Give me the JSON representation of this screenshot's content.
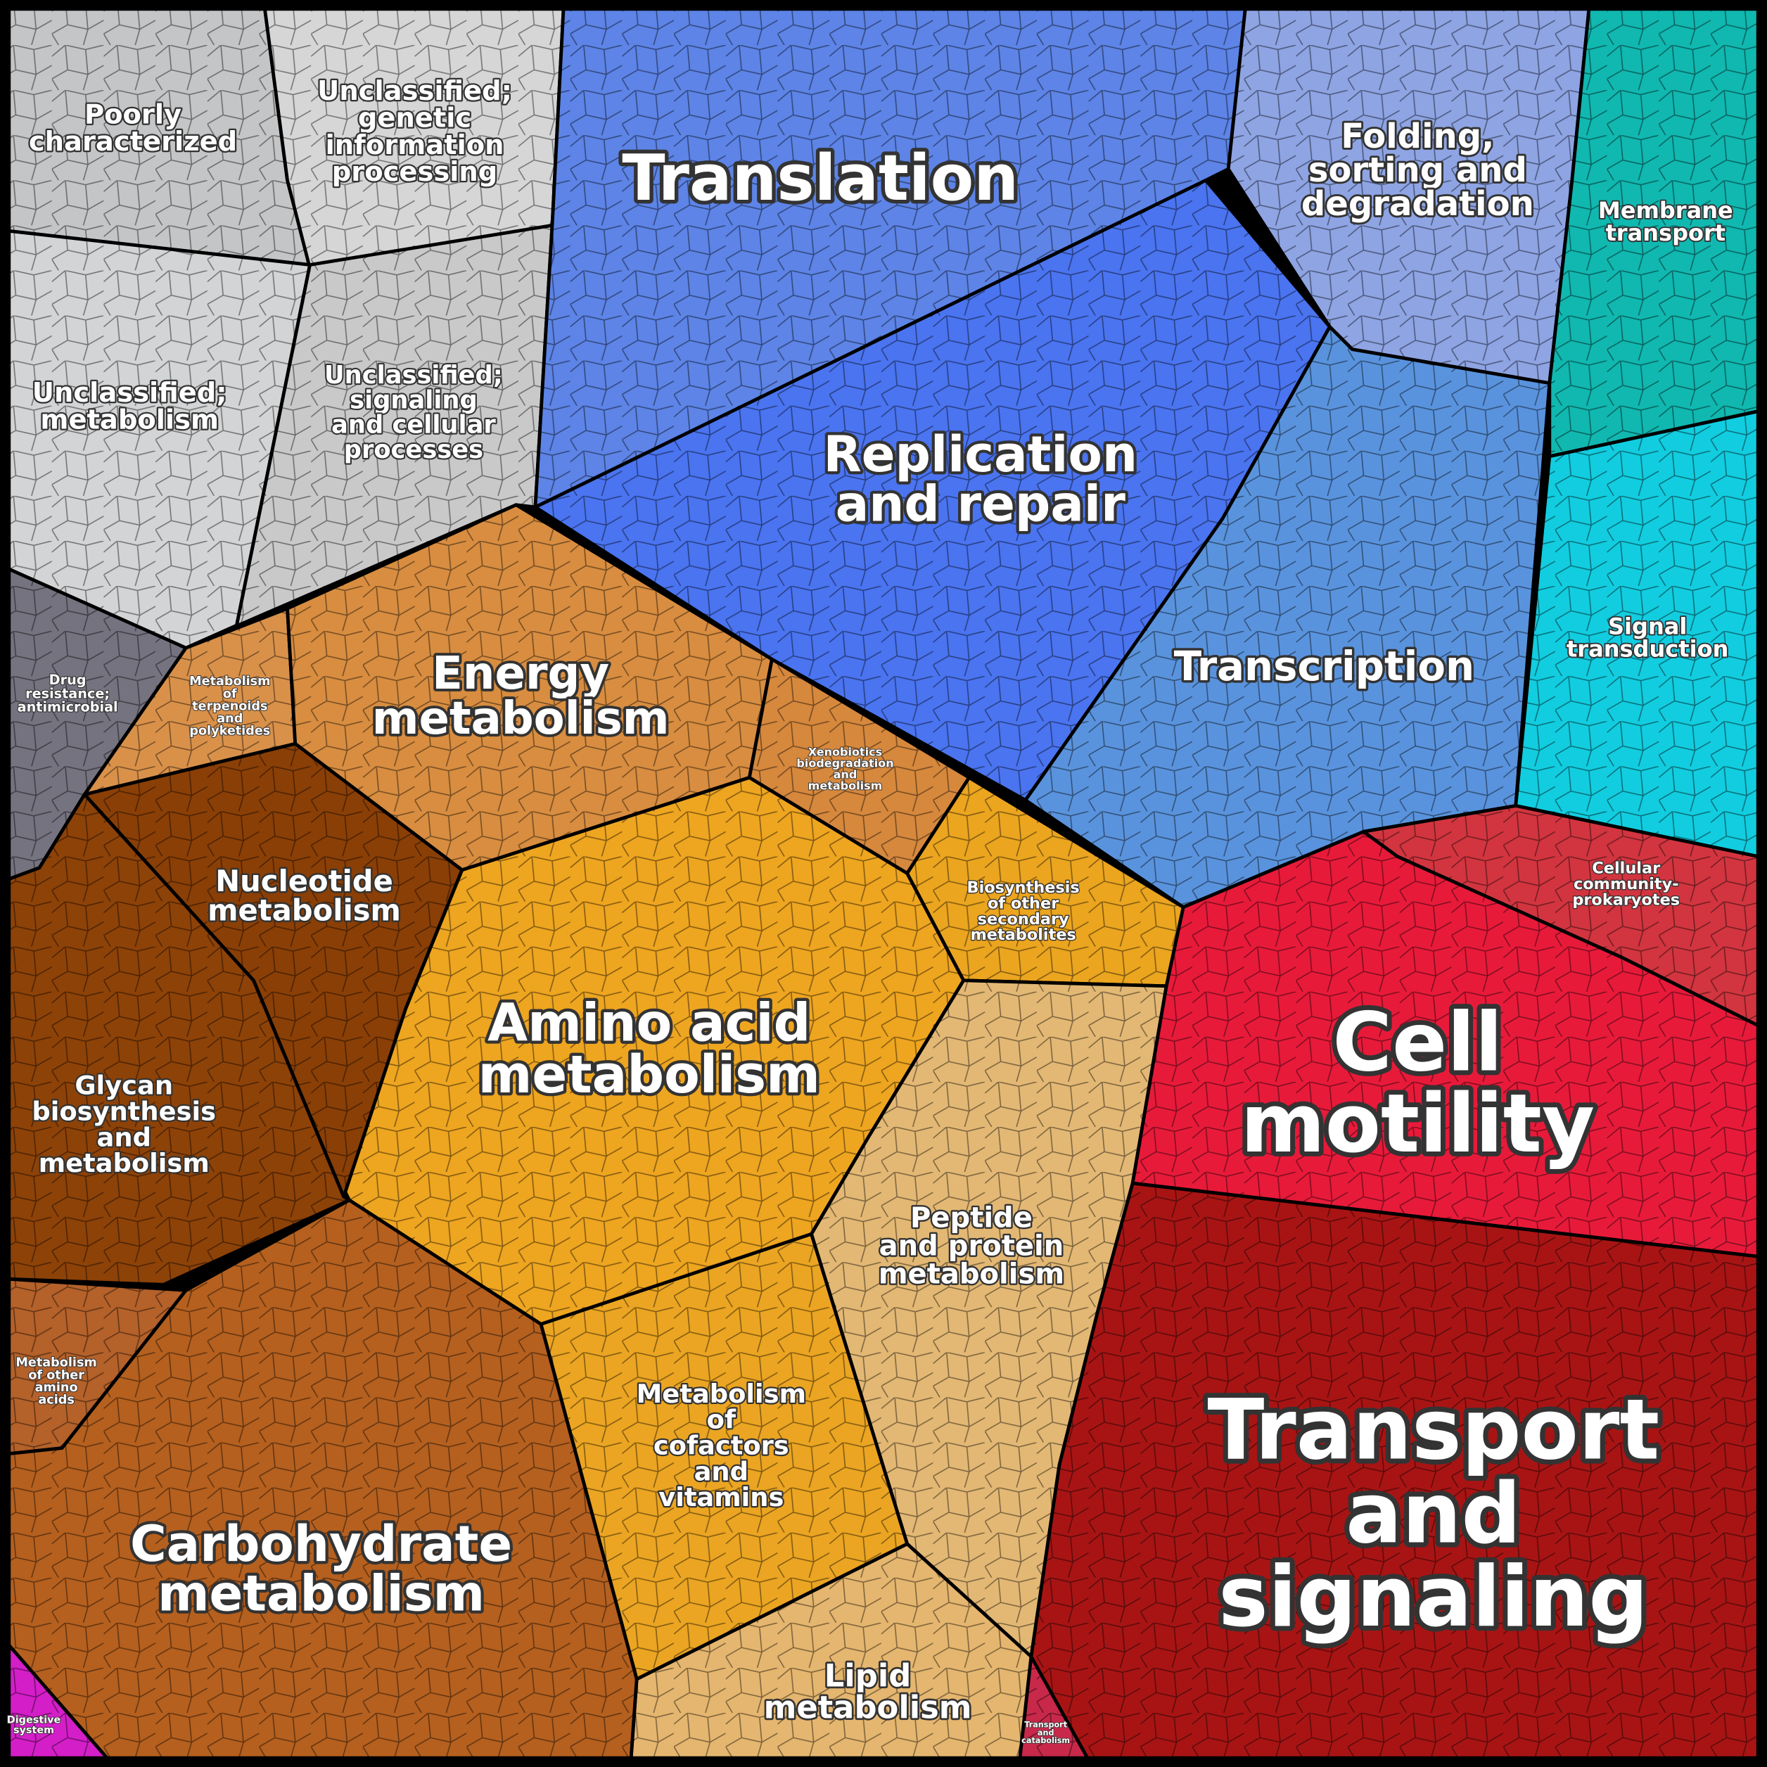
{
  "regions": [
    {
      "label": [
        "Poorly",
        "characterized"
      ],
      "color": "#c4c5c6"
    },
    {
      "label": [
        "Unclassified;",
        "genetic",
        "information",
        "processing"
      ],
      "color": "#d6d6d6"
    },
    {
      "label": [
        "Unclassified;",
        "metabolism"
      ],
      "color": "#d3d4d5"
    },
    {
      "label": [
        "Unclassified;",
        "signaling",
        "and cellular",
        "processes"
      ],
      "color": "#c9c9c9"
    },
    {
      "label": [
        "Drug",
        "resistance;",
        "antimicrobial"
      ],
      "color": "#75737f"
    },
    {
      "label": [
        "Metabolism",
        "of",
        "terpenoids",
        "and",
        "polyketides"
      ],
      "color": "#d9914a"
    },
    {
      "label": [
        "Energy",
        "metabolism"
      ],
      "color": "#d88d40"
    },
    {
      "label": [
        "Xenobiotics",
        "biodegradation",
        "and",
        "metabolism"
      ],
      "color": "#d6883d"
    },
    {
      "label": [
        "Translation"
      ],
      "color": "#5d84e6"
    },
    {
      "label": [
        "Replication",
        "and repair"
      ],
      "color": "#4a74f0"
    },
    {
      "label": [
        "Folding,",
        "sorting and",
        "degradation"
      ],
      "color": "#8ea4e3"
    },
    {
      "label": [
        "Transcription"
      ],
      "color": "#5a93dd"
    },
    {
      "label": [
        "Membrane",
        "transport"
      ],
      "color": "#10b8b0"
    },
    {
      "label": [
        "Signal",
        "transduction"
      ],
      "color": "#12cde0"
    },
    {
      "label": [
        "Cellular",
        "community-",
        "prokaryotes"
      ],
      "color": "#d2353f"
    },
    {
      "label": [
        "Cell",
        "motility"
      ],
      "color": "#e81a3a"
    },
    {
      "label": [
        "Transport",
        "and",
        "signaling"
      ],
      "color": "#a81414"
    },
    {
      "label": [
        "Transport",
        "and",
        "catabolism"
      ],
      "color": "#c8284a"
    },
    {
      "label": [
        "Biosynthesis",
        "of other",
        "secondary",
        "metabolites"
      ],
      "color": "#eba51f"
    },
    {
      "label": [
        "Peptide",
        "and protein",
        "metabolism"
      ],
      "color": "#e3b874"
    },
    {
      "label": [
        "Lipid",
        "metabolism"
      ],
      "color": "#e5b66f"
    },
    {
      "label": [
        "Metabolism",
        "of",
        "cofactors",
        "and",
        "vitamins"
      ],
      "color": "#eba522"
    },
    {
      "label": [
        "Amino acid",
        "metabolism"
      ],
      "color": "#eea520"
    },
    {
      "label": [
        "Nucleotide",
        "metabolism"
      ],
      "color": "#8a3f06"
    },
    {
      "label": [
        "Glycan",
        "biosynthesis",
        "and",
        "metabolism"
      ],
      "color": "#8d4208"
    },
    {
      "label": [
        "Metabolism",
        "of other",
        "amino",
        "acids"
      ],
      "color": "#b4612a"
    },
    {
      "label": [
        "Carbohydrate",
        "metabolism"
      ],
      "color": "#b5601f"
    },
    {
      "label": [
        "Digestive",
        "system"
      ],
      "color": "#d41ec8"
    }
  ]
}
